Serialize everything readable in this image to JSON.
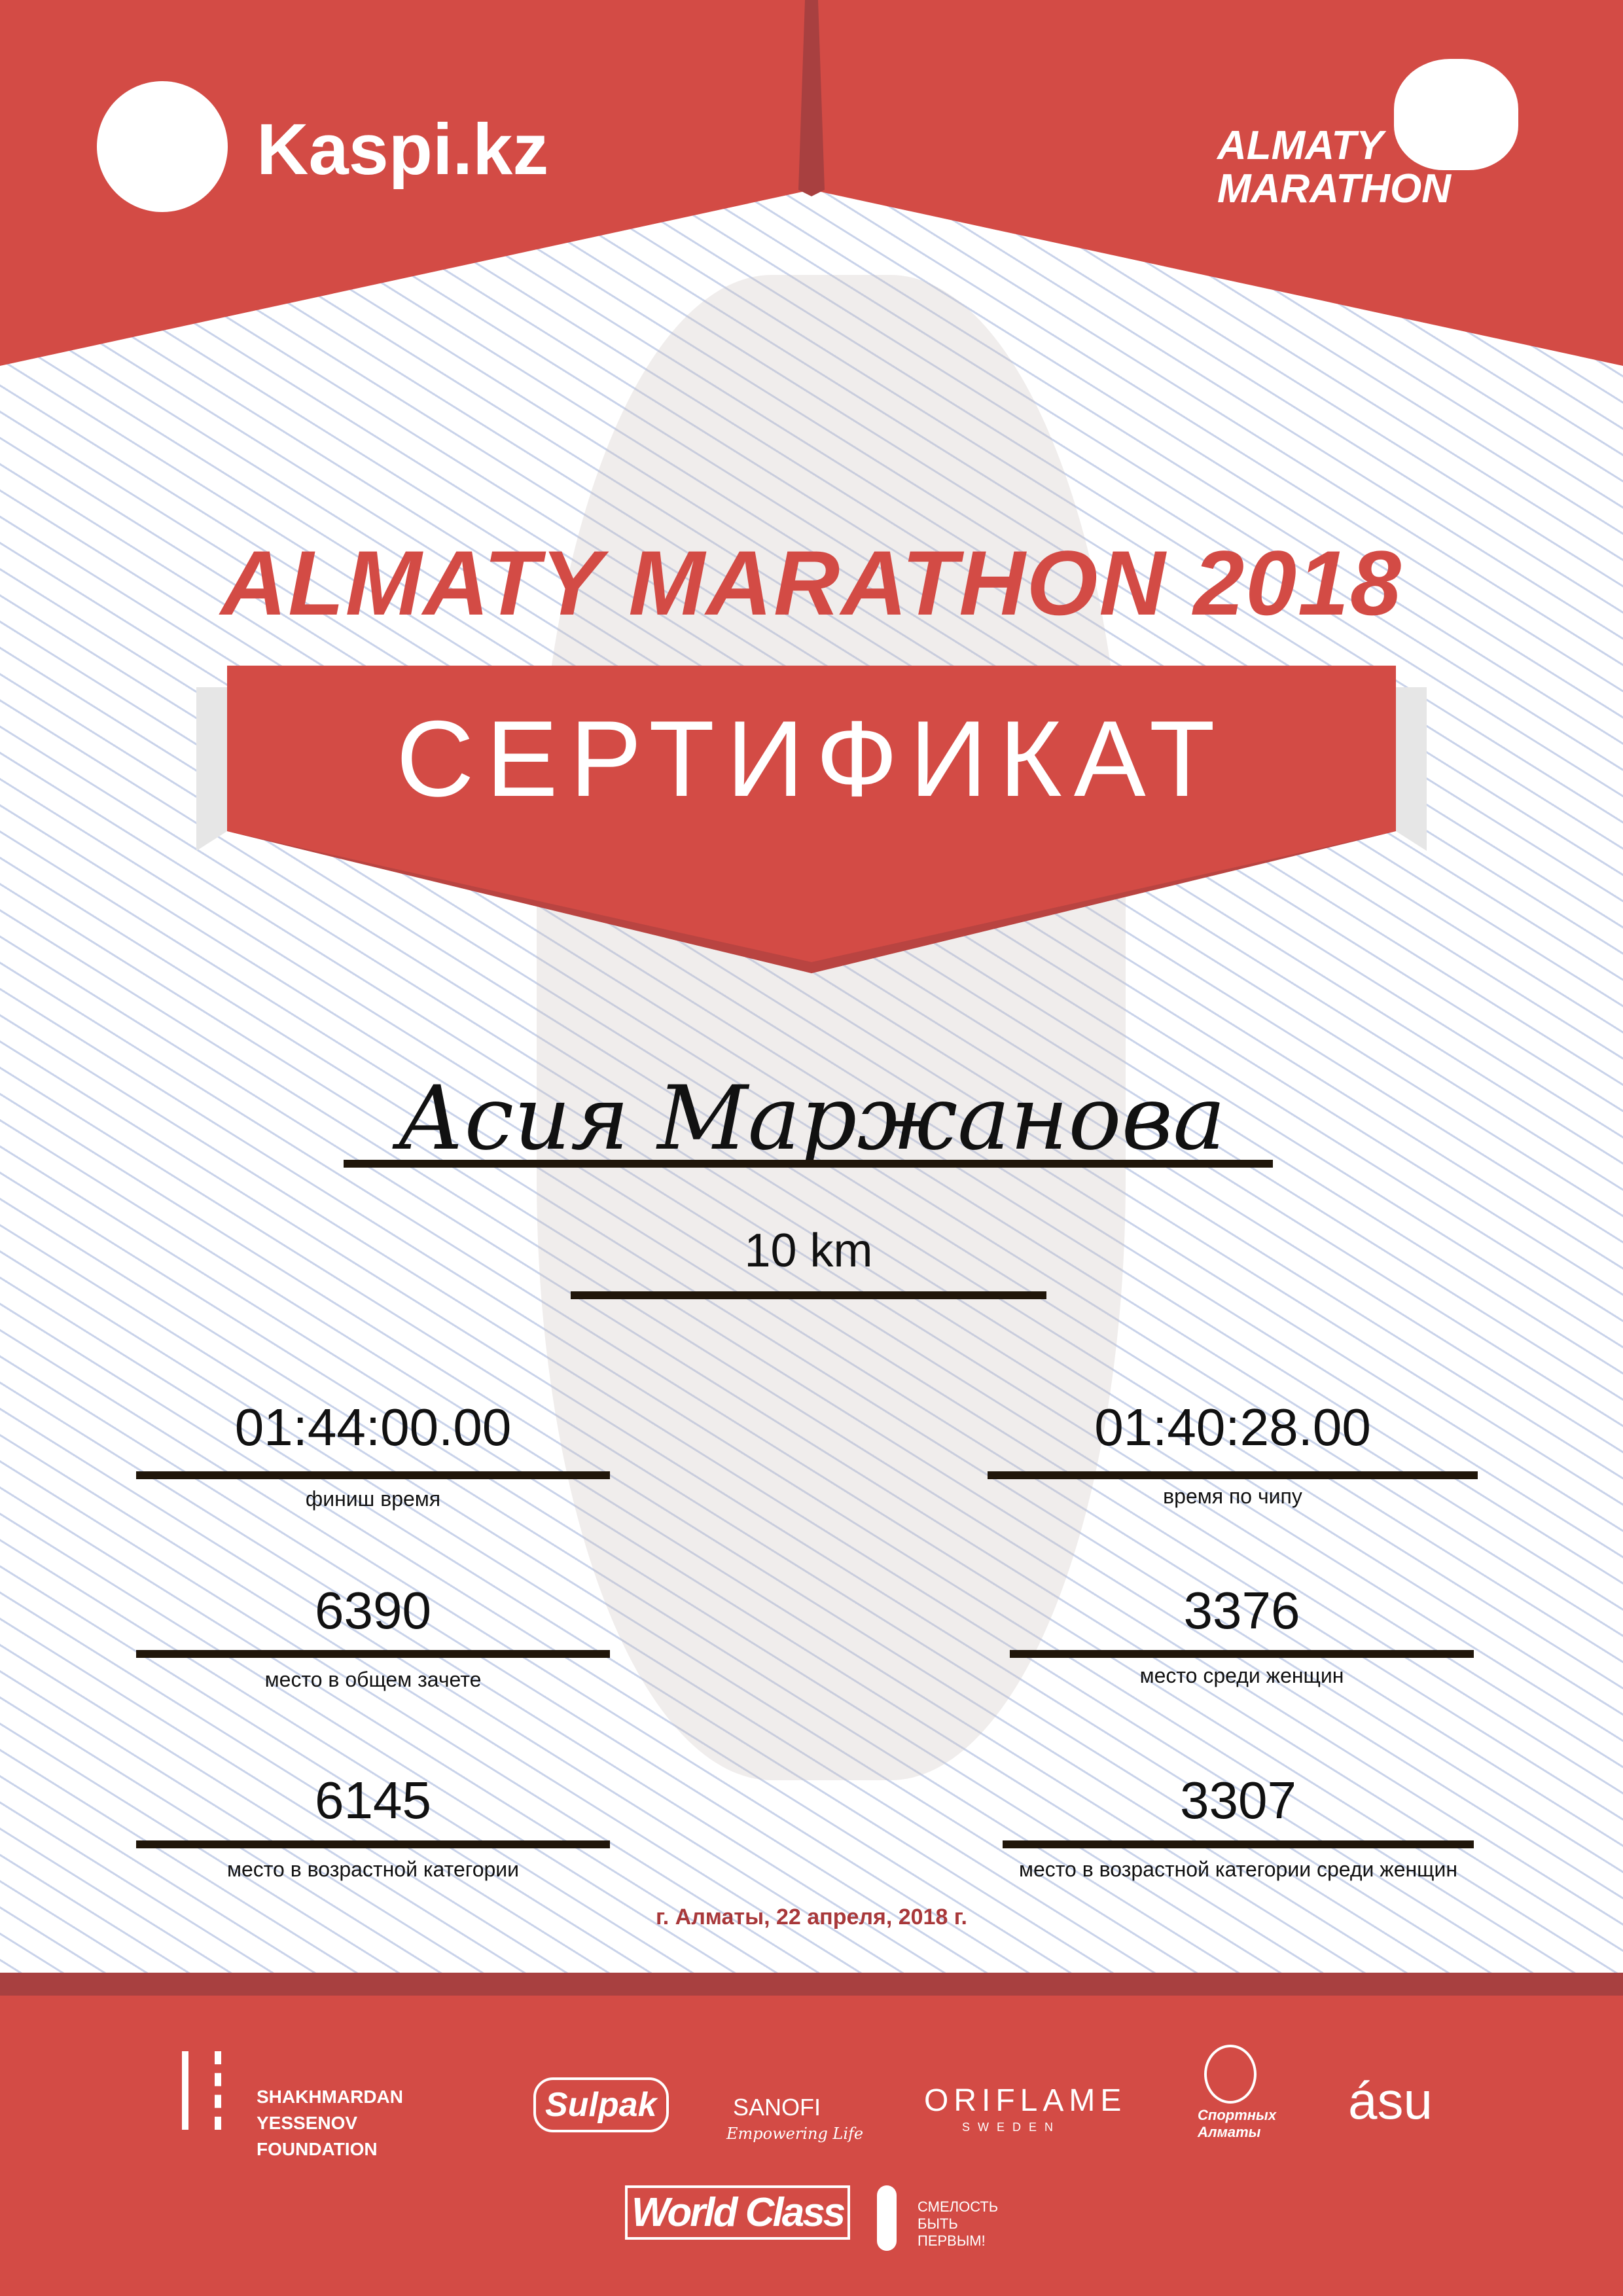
{
  "colors": {
    "brand_red": "#d34b45",
    "dark_red": "#a84040",
    "date_red": "#a8383a"
  },
  "header": {
    "kaspi_label": "Kaspi.kz",
    "event_logo_line1": "ALMATY",
    "event_logo_line2": "MARATHON"
  },
  "title": "ALMATY MARATHON 2018",
  "certificate_label": "СЕРТИФИКАТ",
  "participant": {
    "name": "Асия Маржанова",
    "distance": "10 km"
  },
  "results": [
    {
      "value": "01:44:00.00",
      "label": "финиш время"
    },
    {
      "value": "01:40:28.00",
      "label": "время по чипу"
    },
    {
      "value": "6390",
      "label": "место в общем зачете"
    },
    {
      "value": "3376",
      "label": "место среди женщин"
    },
    {
      "value": "6145",
      "label": "место в возрастной категории"
    },
    {
      "value": "3307",
      "label": "место в возрастной категории среди женщин"
    }
  ],
  "date": "г. Алматы, 22 апреля, 2018 г.",
  "sponsors": {
    "yessenov": "SHAKHMARDAN YESSENOV FOUNDATION",
    "sulpak": "Sulpak",
    "sanofi": "SANOFI",
    "sanofi_tag": "Empowering Life",
    "oriflame": "ORIFLAME",
    "oriflame_sub": "SWEDEN",
    "sport_almaty": "Спортных Алматы",
    "asu": "ásu",
    "worldclass": "World Class",
    "fund": "СМЕЛОСТЬ БЫТЬ ПЕРВЫМ!"
  }
}
